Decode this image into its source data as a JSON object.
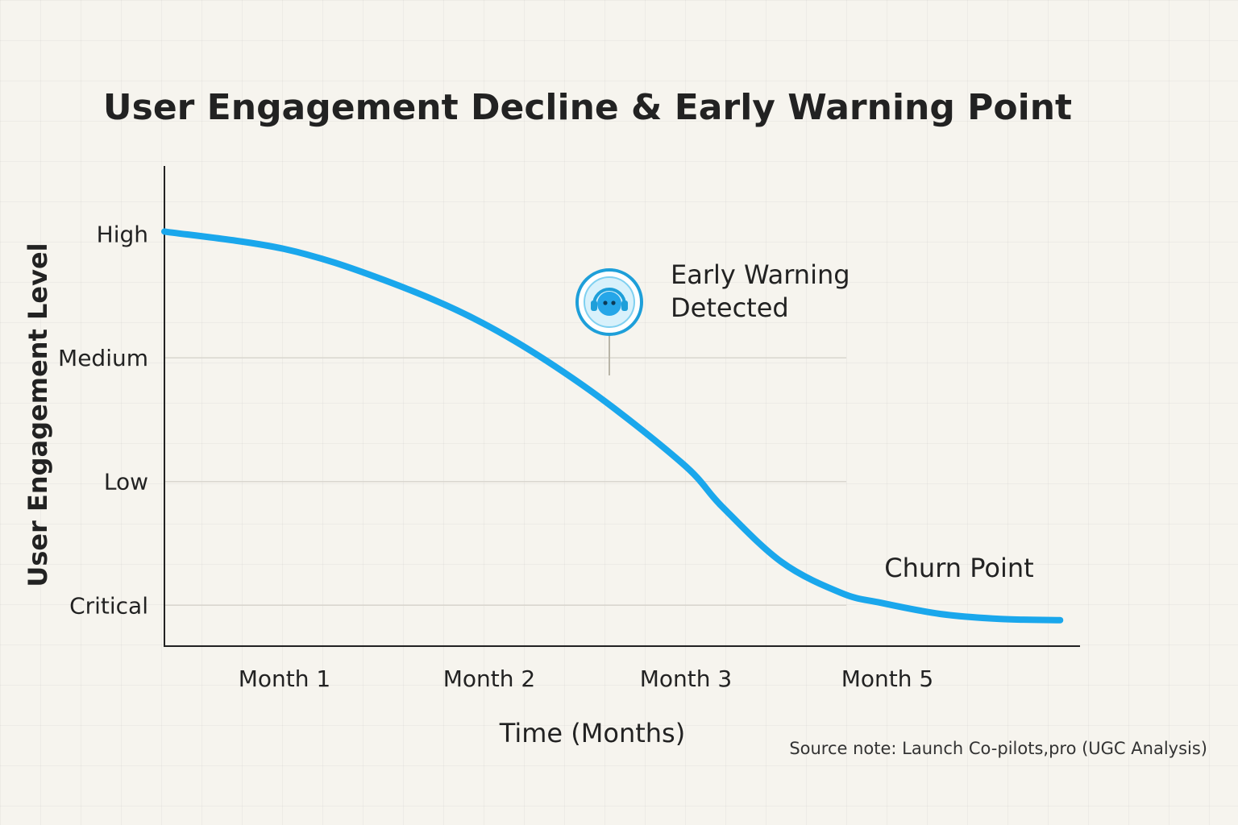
{
  "chart_data": {
    "type": "line",
    "title": "User Engagement Decline & Early Warning Point",
    "xlabel": "Time (Months)",
    "ylabel": "User Engagement Level",
    "categories": [
      "Month 1",
      "Month 2",
      "Month 3",
      "Month 5"
    ],
    "y_levels": [
      {
        "label": "High",
        "value": 3
      },
      {
        "label": "Medium",
        "value": 2
      },
      {
        "label": "Low",
        "value": 1
      },
      {
        "label": "Critical",
        "value": 0
      }
    ],
    "xlim": [
      0.4,
      5.0
    ],
    "ylim": [
      -0.33,
      3.55
    ],
    "grid": true,
    "series": [
      {
        "name": "User Engagement",
        "color": "#1aa7ec",
        "x": [
          0.4,
          1.0,
          1.5,
          2.0,
          2.5,
          3.0,
          3.2,
          3.5,
          3.8,
          4.0,
          4.3,
          4.6,
          4.9
        ],
        "y": [
          3.02,
          2.88,
          2.63,
          2.28,
          1.78,
          1.15,
          0.8,
          0.35,
          0.1,
          0.02,
          -0.07,
          -0.11,
          -0.12
        ]
      }
    ],
    "annotations": [
      {
        "text": "Early Warning Detected",
        "lines": [
          "Early Warning",
          "Detected"
        ],
        "x": 2.6,
        "y": 1.65,
        "icon": "robot-headset-icon"
      },
      {
        "text": "Churn Point",
        "x": 4.4,
        "y": 0.3
      }
    ],
    "source_note": "Source note: Launch Co-pilots,pro (UGC Analysis)"
  },
  "colors": {
    "curve": "#1aa7ec",
    "icon_ring": "#1e9fd9",
    "icon_fill": "#d8f1fb",
    "grid": "#d9d6cf",
    "axis": "#222222"
  }
}
